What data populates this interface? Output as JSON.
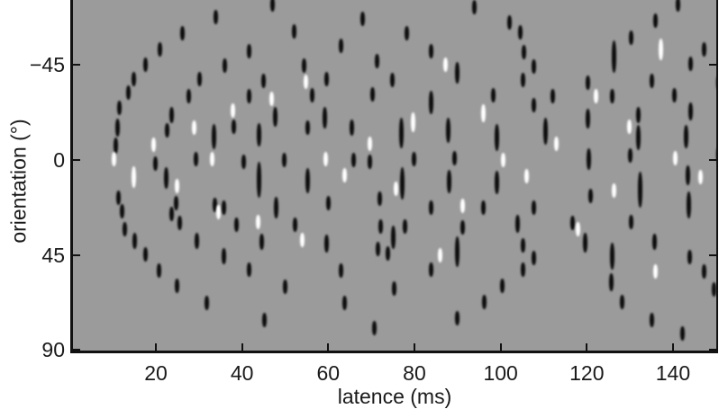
{
  "figure": {
    "background_color": "#ffffff",
    "plot_background_color": "#9b9b9b",
    "axis_color": "#111111",
    "mark_dark_color": "#0c0c0c",
    "mark_light_color": "#ffffff"
  },
  "chart_data": {
    "type": "scatter",
    "title": "",
    "xlabel": "latence (ms)",
    "ylabel": "orientation (°)",
    "xlim": [
      0.4,
      150.5
    ],
    "ylim": [
      -75.8,
      91.1
    ],
    "y_axis_inverted_note": "y increases downward: top edge -75.8 deg (clipped), bottom 91.1 deg",
    "x_ticks": [
      20,
      40,
      60,
      80,
      100,
      120,
      140
    ],
    "x_tick_labels": [
      "20",
      "40",
      "60",
      "80",
      "100",
      "120",
      "140"
    ],
    "y_ticks": [
      -45,
      0,
      45,
      90
    ],
    "y_tick_labels": [
      "−45",
      "0",
      "45",
      "90"
    ],
    "grid": false,
    "legend": null,
    "point_format": "[latency_ms, orientation_deg, polarity(b=black,w=white), optional_bar_length_px]",
    "points": [
      [
        34.0,
        -67.7,
        "b"
      ],
      [
        26.1,
        -60.0,
        "b"
      ],
      [
        21.0,
        -52.4,
        "b"
      ],
      [
        17.7,
        -45.1,
        "b"
      ],
      [
        14.8,
        -38.3,
        "b"
      ],
      [
        13.7,
        -31.9,
        "b"
      ],
      [
        11.6,
        -24.7,
        "b"
      ],
      [
        11.2,
        -15.3,
        "b",
        20
      ],
      [
        10.8,
        -6.8,
        "b",
        18
      ],
      [
        10.2,
        -0.4,
        "w"
      ],
      [
        35.9,
        -44.7,
        "b"
      ],
      [
        30.2,
        -38.3,
        "b"
      ],
      [
        27.7,
        -30.2,
        "b"
      ],
      [
        23.6,
        -21.3,
        "b",
        18
      ],
      [
        37.8,
        -23.4,
        "w"
      ],
      [
        47.0,
        -73.7,
        "b"
      ],
      [
        52.0,
        -60.9,
        "b"
      ],
      [
        41.7,
        -51.5,
        "b"
      ],
      [
        54.3,
        -44.7,
        "b"
      ],
      [
        54.9,
        -37.0,
        "w"
      ],
      [
        44.9,
        -37.5,
        "b"
      ],
      [
        41.7,
        -30.2,
        "b"
      ],
      [
        46.8,
        -29.0,
        "w"
      ],
      [
        47.8,
        -20.4,
        "b",
        22
      ],
      [
        56.2,
        -30.7,
        "b"
      ],
      [
        59.7,
        -38.3,
        "b"
      ],
      [
        59.3,
        -20.0,
        "b",
        24
      ],
      [
        62.9,
        -54.1,
        "b"
      ],
      [
        67.9,
        -66.9,
        "b"
      ],
      [
        71.4,
        -46.8,
        "b"
      ],
      [
        70.2,
        -31.1,
        "b"
      ],
      [
        94.0,
        -72.4,
        "b"
      ],
      [
        78.3,
        -60.0,
        "b"
      ],
      [
        102.0,
        -65.2,
        "b"
      ],
      [
        104.5,
        -60.5,
        "b"
      ],
      [
        83.8,
        -51.5,
        "b"
      ],
      [
        87.3,
        -45.1,
        "w"
      ],
      [
        90.0,
        -41.3,
        "b",
        24
      ],
      [
        105.5,
        -51.1,
        "b"
      ],
      [
        107.8,
        -44.3,
        "b"
      ],
      [
        74.8,
        -37.9,
        "b"
      ],
      [
        105.1,
        -37.9,
        "b"
      ],
      [
        83.8,
        -27.3,
        "b",
        26
      ],
      [
        98.2,
        -30.7,
        "b"
      ],
      [
        95.9,
        -22.1,
        "w",
        20
      ],
      [
        107.8,
        -26.0,
        "b"
      ],
      [
        76.9,
        -12.8,
        "b",
        34
      ],
      [
        79.6,
        -17.9,
        "w",
        22
      ],
      [
        87.8,
        -14.1,
        "b",
        28
      ],
      [
        141.1,
        -73.7,
        "b"
      ],
      [
        136.0,
        -66.0,
        "b"
      ],
      [
        130.2,
        -57.9,
        "b"
      ],
      [
        126.4,
        -49.0,
        "b",
        36
      ],
      [
        137.1,
        -52.4,
        "w",
        24
      ],
      [
        120.2,
        -36.6,
        "b"
      ],
      [
        122.2,
        -30.2,
        "w"
      ],
      [
        126.0,
        -30.2,
        "b"
      ],
      [
        112.0,
        -30.2,
        "b"
      ],
      [
        135.0,
        -37.5,
        "b"
      ],
      [
        144.0,
        -45.6,
        "b"
      ],
      [
        147.3,
        -52.4,
        "b"
      ],
      [
        140.4,
        -30.7,
        "b"
      ],
      [
        120.2,
        -19.6,
        "b",
        22
      ],
      [
        131.9,
        -21.3,
        "b",
        18
      ],
      [
        131.9,
        -10.6,
        "b",
        28
      ],
      [
        144.0,
        -23.0,
        "b",
        20
      ],
      [
        150.5,
        -36.6,
        "b"
      ],
      [
        14.8,
        8.1,
        "w",
        24
      ],
      [
        19.4,
        -7.2,
        "w"
      ],
      [
        19.8,
        1.7,
        "b"
      ],
      [
        22.7,
        -14.1,
        "b"
      ],
      [
        22.3,
        8.5,
        "b",
        24
      ],
      [
        25.0,
        12.3,
        "w"
      ],
      [
        24.6,
        20.4,
        "b"
      ],
      [
        23.6,
        25.6,
        "b"
      ],
      [
        25.6,
        29.8,
        "b"
      ],
      [
        28.8,
        -15.3,
        "w"
      ],
      [
        29.2,
        -0.4,
        "b"
      ],
      [
        33.4,
        -11.1,
        "b",
        28
      ],
      [
        33.0,
        -0.4,
        "w"
      ],
      [
        33.6,
        21.3,
        "b"
      ],
      [
        34.6,
        24.7,
        "w"
      ],
      [
        29.6,
        38.3,
        "b",
        18
      ],
      [
        11.4,
        17.9,
        "b"
      ],
      [
        12.1,
        24.3,
        "b"
      ],
      [
        12.7,
        32.8,
        "b"
      ],
      [
        15.0,
        38.3,
        "b",
        18
      ],
      [
        38.0,
        -15.8,
        "b"
      ],
      [
        44.0,
        -11.9,
        "b",
        26
      ],
      [
        40.3,
        0.9,
        "b"
      ],
      [
        44.0,
        9.4,
        "b",
        40
      ],
      [
        49.7,
        0.0,
        "b"
      ],
      [
        48.0,
        22.6,
        "b",
        24
      ],
      [
        55.3,
        -15.3,
        "b"
      ],
      [
        55.3,
        9.8,
        "b",
        28
      ],
      [
        59.5,
        -0.4,
        "w"
      ],
      [
        63.9,
        7.2,
        "w"
      ],
      [
        65.8,
        0.0,
        "b"
      ],
      [
        65.4,
        -15.3,
        "b",
        18
      ],
      [
        60.1,
        20.4,
        "b"
      ],
      [
        69.6,
        -7.7,
        "w"
      ],
      [
        69.6,
        0.9,
        "b"
      ],
      [
        71.9,
        18.3,
        "b"
      ],
      [
        35.7,
        22.6,
        "b"
      ],
      [
        38.8,
        30.7,
        "b"
      ],
      [
        43.8,
        29.4,
        "w"
      ],
      [
        52.2,
        30.7,
        "b"
      ],
      [
        53.9,
        37.9,
        "w"
      ],
      [
        59.7,
        39.6,
        "b",
        20
      ],
      [
        72.1,
        31.5,
        "b"
      ],
      [
        44.5,
        38.8,
        "b",
        18
      ],
      [
        80.0,
        -0.4,
        "b"
      ],
      [
        75.8,
        13.6,
        "w"
      ],
      [
        77.1,
        11.1,
        "b",
        36
      ],
      [
        89.4,
        -0.9,
        "b"
      ],
      [
        88.0,
        10.2,
        "b",
        26
      ],
      [
        99.2,
        -10.6,
        "b",
        30
      ],
      [
        100.5,
        0.0,
        "w"
      ],
      [
        99.2,
        10.6,
        "b",
        26
      ],
      [
        106.1,
        7.7,
        "w"
      ],
      [
        110.5,
        -13.6,
        "b",
        30
      ],
      [
        83.8,
        22.6,
        "b"
      ],
      [
        91.1,
        21.7,
        "w"
      ],
      [
        96.1,
        22.6,
        "b"
      ],
      [
        77.9,
        31.5,
        "b"
      ],
      [
        91.1,
        31.9,
        "b"
      ],
      [
        104.0,
        30.2,
        "b",
        20
      ],
      [
        107.8,
        22.6,
        "b"
      ],
      [
        75.0,
        36.6,
        "b",
        26
      ],
      [
        90.0,
        43.4,
        "b",
        34
      ],
      [
        113.0,
        -7.7,
        "w"
      ],
      [
        120.4,
        -0.4,
        "b",
        24
      ],
      [
        120.8,
        17.0,
        "b"
      ],
      [
        116.8,
        29.8,
        "b"
      ],
      [
        117.9,
        32.8,
        "w"
      ],
      [
        126.4,
        14.5,
        "w"
      ],
      [
        129.8,
        -15.8,
        "w"
      ],
      [
        130.0,
        -2.1,
        "b"
      ],
      [
        132.3,
        14.1,
        "b",
        40
      ],
      [
        130.2,
        29.4,
        "b"
      ],
      [
        140.6,
        -0.9,
        "w"
      ],
      [
        143.1,
        -11.1,
        "b",
        26
      ],
      [
        143.4,
        7.2,
        "b",
        22
      ],
      [
        143.6,
        21.3,
        "b",
        30
      ],
      [
        146.3,
        8.1,
        "w"
      ],
      [
        150.5,
        -2.6,
        "b"
      ],
      [
        119.7,
        39.2,
        "b",
        22
      ],
      [
        135.8,
        38.8,
        "b",
        18
      ],
      [
        17.7,
        44.7,
        "b"
      ],
      [
        20.8,
        52.4,
        "b"
      ],
      [
        25.0,
        59.6,
        "b"
      ],
      [
        31.9,
        67.7,
        "b"
      ],
      [
        35.7,
        45.6,
        "b",
        18
      ],
      [
        41.7,
        52.0,
        "b"
      ],
      [
        50.1,
        60.0,
        "b"
      ],
      [
        62.9,
        52.4,
        "b"
      ],
      [
        63.9,
        67.7,
        "b"
      ],
      [
        45.1,
        75.8,
        "b"
      ],
      [
        70.6,
        79.6,
        "b"
      ],
      [
        71.6,
        42.2,
        "b"
      ],
      [
        73.9,
        44.3,
        "b"
      ],
      [
        85.9,
        45.1,
        "w"
      ],
      [
        83.8,
        52.0,
        "b"
      ],
      [
        75.2,
        60.9,
        "b"
      ],
      [
        96.3,
        67.3,
        "b"
      ],
      [
        100.3,
        59.6,
        "b"
      ],
      [
        105.1,
        40.5,
        "b"
      ],
      [
        107.8,
        46.4,
        "b"
      ],
      [
        105.1,
        52.0,
        "b"
      ],
      [
        90.0,
        75.0,
        "b"
      ],
      [
        126.0,
        45.6,
        "b",
        30
      ],
      [
        125.6,
        57.9,
        "b",
        20
      ],
      [
        128.1,
        67.3,
        "b"
      ],
      [
        136.0,
        52.8,
        "w"
      ],
      [
        135.0,
        75.8,
        "b"
      ],
      [
        143.8,
        46.0,
        "b"
      ],
      [
        147.3,
        52.8,
        "b"
      ],
      [
        142.1,
        82.2,
        "b"
      ],
      [
        149.6,
        61.3,
        "b"
      ]
    ]
  }
}
